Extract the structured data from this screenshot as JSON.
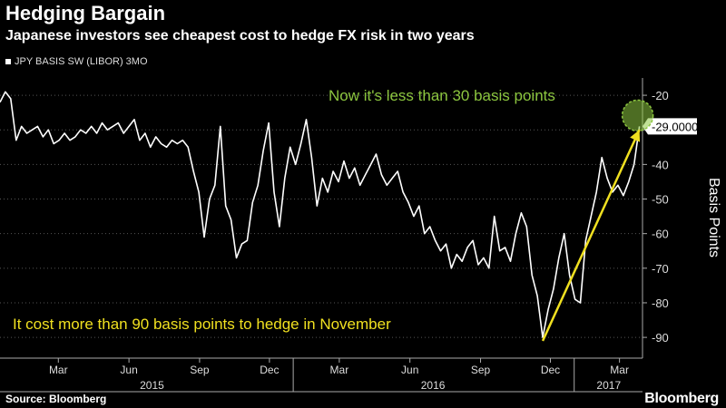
{
  "header": {
    "title": "Hedging Bargain",
    "subtitle": "Japanese investors see cheapest cost to hedge FX risk in two years"
  },
  "footer": {
    "source": "Source: Bloomberg",
    "brand": "Bloomberg"
  },
  "colors": {
    "line": "#ffffff",
    "accent_green": "#8cc63f",
    "accent_yellow": "#f0e020",
    "background": "#000000",
    "grid": "#555555"
  },
  "chart_data": {
    "type": "line",
    "title": "Hedging Bargain",
    "subtitle": "Japanese investors see cheapest cost to hedge FX risk in two years",
    "xlabel": "",
    "ylabel": "Basis Points",
    "ylim": [
      -96,
      -15
    ],
    "yticks": [
      -20,
      -30,
      -40,
      -50,
      -60,
      -70,
      -80,
      -90
    ],
    "x_axis": {
      "start": "2014-12-15",
      "end": "2017-03-31",
      "month_ticks": [
        {
          "date": "2015-03-01",
          "label": "Mar"
        },
        {
          "date": "2015-06-01",
          "label": "Jun"
        },
        {
          "date": "2015-09-01",
          "label": "Sep"
        },
        {
          "date": "2015-12-01",
          "label": "Dec"
        },
        {
          "date": "2016-03-01",
          "label": "Mar"
        },
        {
          "date": "2016-06-01",
          "label": "Jun"
        },
        {
          "date": "2016-09-01",
          "label": "Sep"
        },
        {
          "date": "2016-12-01",
          "label": "Dec"
        },
        {
          "date": "2017-03-01",
          "label": "Mar"
        }
      ],
      "year_labels": [
        {
          "date": "2015-07-01",
          "label": "2015"
        },
        {
          "date": "2016-07-01",
          "label": "2016"
        },
        {
          "date": "2017-02-15",
          "label": "2017"
        }
      ],
      "year_dividers": [
        "2016-01-01",
        "2017-01-01"
      ]
    },
    "series": [
      {
        "name": "JPY BASIS SW (LIBOR) 3MO",
        "points": [
          [
            "2014-12-15",
            -22
          ],
          [
            "2014-12-22",
            -19
          ],
          [
            "2014-12-29",
            -21
          ],
          [
            "2015-01-05",
            -33
          ],
          [
            "2015-01-12",
            -29
          ],
          [
            "2015-01-19",
            -31
          ],
          [
            "2015-01-26",
            -30
          ],
          [
            "2015-02-02",
            -29
          ],
          [
            "2015-02-09",
            -32
          ],
          [
            "2015-02-16",
            -30
          ],
          [
            "2015-02-23",
            -34
          ],
          [
            "2015-03-02",
            -33
          ],
          [
            "2015-03-09",
            -31
          ],
          [
            "2015-03-16",
            -33
          ],
          [
            "2015-03-23",
            -32
          ],
          [
            "2015-03-30",
            -30
          ],
          [
            "2015-04-06",
            -31
          ],
          [
            "2015-04-13",
            -29
          ],
          [
            "2015-04-20",
            -31
          ],
          [
            "2015-04-27",
            -28
          ],
          [
            "2015-05-04",
            -30
          ],
          [
            "2015-05-11",
            -29
          ],
          [
            "2015-05-18",
            -28
          ],
          [
            "2015-05-25",
            -31
          ],
          [
            "2015-06-01",
            -29
          ],
          [
            "2015-06-08",
            -27
          ],
          [
            "2015-06-15",
            -33
          ],
          [
            "2015-06-22",
            -31
          ],
          [
            "2015-06-29",
            -35
          ],
          [
            "2015-07-06",
            -32
          ],
          [
            "2015-07-13",
            -34
          ],
          [
            "2015-07-20",
            -35
          ],
          [
            "2015-07-27",
            -33
          ],
          [
            "2015-08-03",
            -34
          ],
          [
            "2015-08-10",
            -33
          ],
          [
            "2015-08-17",
            -35
          ],
          [
            "2015-08-24",
            -42
          ],
          [
            "2015-08-31",
            -48
          ],
          [
            "2015-09-07",
            -61
          ],
          [
            "2015-09-14",
            -50
          ],
          [
            "2015-09-21",
            -46
          ],
          [
            "2015-09-28",
            -29
          ],
          [
            "2015-10-05",
            -52
          ],
          [
            "2015-10-12",
            -56
          ],
          [
            "2015-10-19",
            -67
          ],
          [
            "2015-10-26",
            -63
          ],
          [
            "2015-11-02",
            -62
          ],
          [
            "2015-11-09",
            -51
          ],
          [
            "2015-11-16",
            -46
          ],
          [
            "2015-11-23",
            -36
          ],
          [
            "2015-11-30",
            -28
          ],
          [
            "2015-12-07",
            -48
          ],
          [
            "2015-12-14",
            -58
          ],
          [
            "2015-12-21",
            -44
          ],
          [
            "2015-12-28",
            -35
          ],
          [
            "2016-01-04",
            -40
          ],
          [
            "2016-01-11",
            -34
          ],
          [
            "2016-01-18",
            -27
          ],
          [
            "2016-01-25",
            -38
          ],
          [
            "2016-02-01",
            -52
          ],
          [
            "2016-02-08",
            -44
          ],
          [
            "2016-02-15",
            -48
          ],
          [
            "2016-02-22",
            -42
          ],
          [
            "2016-02-29",
            -45
          ],
          [
            "2016-03-07",
            -39
          ],
          [
            "2016-03-14",
            -44
          ],
          [
            "2016-03-21",
            -41
          ],
          [
            "2016-03-28",
            -46
          ],
          [
            "2016-04-04",
            -43
          ],
          [
            "2016-04-11",
            -40
          ],
          [
            "2016-04-18",
            -37
          ],
          [
            "2016-04-25",
            -43
          ],
          [
            "2016-05-02",
            -46
          ],
          [
            "2016-05-09",
            -44
          ],
          [
            "2016-05-16",
            -42
          ],
          [
            "2016-05-23",
            -48
          ],
          [
            "2016-05-30",
            -51
          ],
          [
            "2016-06-06",
            -55
          ],
          [
            "2016-06-13",
            -52
          ],
          [
            "2016-06-20",
            -60
          ],
          [
            "2016-06-27",
            -58
          ],
          [
            "2016-07-04",
            -62
          ],
          [
            "2016-07-11",
            -65
          ],
          [
            "2016-07-18",
            -63
          ],
          [
            "2016-07-25",
            -70
          ],
          [
            "2016-08-01",
            -66
          ],
          [
            "2016-08-08",
            -68
          ],
          [
            "2016-08-15",
            -64
          ],
          [
            "2016-08-22",
            -62
          ],
          [
            "2016-08-29",
            -69
          ],
          [
            "2016-09-05",
            -67
          ],
          [
            "2016-09-12",
            -70
          ],
          [
            "2016-09-19",
            -55
          ],
          [
            "2016-09-26",
            -65
          ],
          [
            "2016-10-03",
            -64
          ],
          [
            "2016-10-10",
            -68
          ],
          [
            "2016-10-17",
            -60
          ],
          [
            "2016-10-24",
            -54
          ],
          [
            "2016-10-31",
            -58
          ],
          [
            "2016-11-07",
            -72
          ],
          [
            "2016-11-14",
            -78
          ],
          [
            "2016-11-21",
            -90
          ],
          [
            "2016-11-28",
            -82
          ],
          [
            "2016-12-05",
            -76
          ],
          [
            "2016-12-12",
            -67
          ],
          [
            "2016-12-19",
            -60
          ],
          [
            "2016-12-26",
            -72
          ],
          [
            "2017-01-02",
            -79
          ],
          [
            "2017-01-09",
            -80
          ],
          [
            "2017-01-16",
            -62
          ],
          [
            "2017-01-23",
            -55
          ],
          [
            "2017-01-30",
            -48
          ],
          [
            "2017-02-06",
            -38
          ],
          [
            "2017-02-13",
            -44
          ],
          [
            "2017-02-20",
            -48
          ],
          [
            "2017-02-27",
            -46
          ],
          [
            "2017-03-06",
            -49
          ],
          [
            "2017-03-13",
            -45
          ],
          [
            "2017-03-20",
            -40
          ],
          [
            "2017-03-27",
            -29
          ]
        ],
        "last_value_label": "-29.0000"
      }
    ],
    "annotations": [
      {
        "text": "Now it's less than 30 basis points",
        "color": "#8cc63f",
        "highlight_date": "2017-03-27",
        "highlight_value": -29
      },
      {
        "text": "It cost more than 90 basis points to hedge in November",
        "color": "#f0e020",
        "arrow_from": [
          "2016-11-21",
          -91
        ],
        "arrow_to": [
          "2017-03-27",
          -30
        ]
      }
    ],
    "grid": "horizontal dotted",
    "legend_placement": "top-left"
  }
}
